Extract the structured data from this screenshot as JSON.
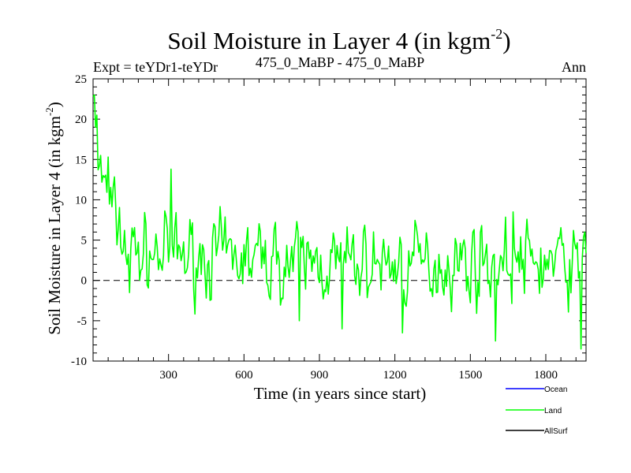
{
  "chart_data": {
    "type": "line",
    "title": "Soil Moisture in Layer 4 (in kgm",
    "title_sup": "-2",
    "title_end": ")",
    "subtitle_left": "Expt = teYDr1-teYDr",
    "subtitle_center": "475_0_MaBP - 475_0_MaBP",
    "subtitle_right": "Ann",
    "xlabel": "Time (in years since start)",
    "ylabel": "Soil Moisture in Layer 4 (in kgm",
    "ylabel_sup": "-2",
    "ylabel_end": ")",
    "xlim": [
      0,
      1960
    ],
    "ylim": [
      -10,
      25
    ],
    "xticks": [
      300,
      600,
      900,
      1200,
      1500,
      1800
    ],
    "yticks": [
      -10,
      -5,
      0,
      5,
      10,
      15,
      20,
      25
    ],
    "reference_line": 0,
    "legend": [
      {
        "name": "Ocean",
        "color": "#0000ff"
      },
      {
        "name": "Land",
        "color": "#00ff00"
      },
      {
        "name": "AllSurf",
        "color": "#000000"
      }
    ],
    "series": [
      {
        "name": "Land",
        "color": "#00ff00",
        "x_start": 0,
        "x_step": 5,
        "trend": [
          [
            0,
            21
          ],
          [
            20,
            15
          ],
          [
            40,
            12
          ],
          [
            60,
            10
          ],
          [
            80,
            8
          ],
          [
            100,
            6.5
          ],
          [
            130,
            4.5
          ],
          [
            160,
            3.5
          ],
          [
            200,
            3.3
          ],
          [
            300,
            3.2
          ],
          [
            400,
            3
          ],
          [
            500,
            2.8
          ],
          [
            600,
            2.6
          ],
          [
            700,
            2.4
          ],
          [
            800,
            2.3
          ],
          [
            900,
            2.2
          ],
          [
            1000,
            2.0
          ],
          [
            1100,
            2.0
          ],
          [
            1200,
            2.0
          ],
          [
            1300,
            2.0
          ],
          [
            1400,
            2.1
          ],
          [
            1500,
            2.2
          ],
          [
            1600,
            2.3
          ],
          [
            1700,
            2.2
          ],
          [
            1800,
            2.2
          ],
          [
            1900,
            2.0
          ],
          [
            1960,
            1.5
          ]
        ],
        "amplitude": 3.4,
        "seed": 7,
        "features": [
          [
            0,
            22.8
          ],
          [
            5,
            23
          ],
          [
            10,
            19
          ],
          [
            15,
            20.5
          ],
          [
            25,
            14.2
          ],
          [
            30,
            15.5
          ],
          [
            40,
            13
          ],
          [
            60,
            15.3
          ],
          [
            145,
            -1.5
          ],
          [
            310,
            13.8
          ],
          [
            820,
            -5
          ],
          [
            990,
            -6
          ],
          [
            1230,
            -6.5
          ],
          [
            1600,
            -7.5
          ],
          [
            1670,
            8.5
          ],
          [
            1940,
            -8.5
          ],
          [
            1955,
            6
          ]
        ]
      },
      {
        "name": "Ocean",
        "color": "#0000ff",
        "values": []
      },
      {
        "name": "AllSurf",
        "color": "#000000",
        "values": []
      }
    ]
  }
}
